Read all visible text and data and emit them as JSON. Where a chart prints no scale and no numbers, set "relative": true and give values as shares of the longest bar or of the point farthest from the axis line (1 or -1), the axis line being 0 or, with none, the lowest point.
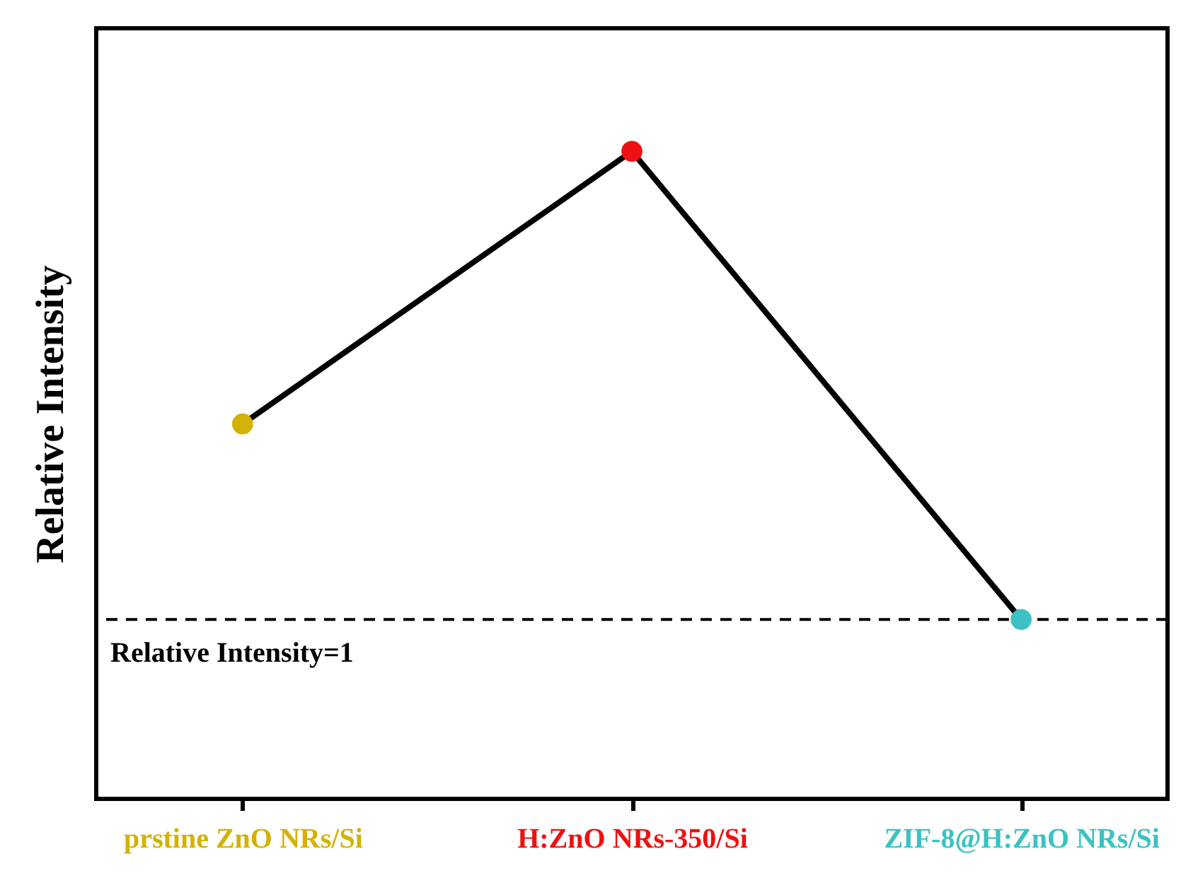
{
  "chart_data": {
    "type": "line",
    "ylabel": "Relative Intensity",
    "categories": [
      "prstine ZnO NRs/Si",
      "H:ZnO NRs-350/Si",
      "ZIF-8@H:ZnO NRs/Si"
    ],
    "values": [
      0.579,
      1,
      0.277
    ],
    "color": "#000000",
    "colors": [
      "#d4b106",
      "#ee1111",
      "#3cc2c2"
    ],
    "relative": true,
    "marker": "circle",
    "line_style": "solid",
    "ref_lines": [
      {
        "axis": "y",
        "value": 0.277,
        "line_style": "dashed",
        "color": "#000000"
      }
    ],
    "annotations": [
      {
        "text": "Relative Intensity=1",
        "y": 0.277
      }
    ]
  }
}
